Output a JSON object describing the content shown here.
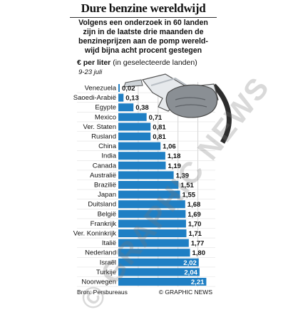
{
  "header": {
    "title": "Dure benzine wereldwijd",
    "subtitle_lines": [
      "Volgens een onderzoek in 60 landen",
      "zijn in de laatste drie maanden de",
      "benzineprijzen aan de pomp wereld-",
      "wijd bijna acht procent gestegen"
    ],
    "unit_bold": "€ per liter",
    "unit_rest": " (in geselecteerde landen)",
    "dates": "9-23 juli"
  },
  "footer": {
    "source": "Bron: Persbureaus",
    "credit": "© GRAPHIC NEWS"
  },
  "watermark": "© GRAPHIC NEWS",
  "colors": {
    "bar": "#1f7fc4",
    "bar_highlight": "#2b8fd6",
    "grid": "#c9c9c9"
  },
  "chart_data": {
    "type": "bar",
    "orientation": "horizontal",
    "categories": [
      "Venezuela",
      "Saoedi-Arabië",
      "Egypte",
      "Mexico",
      "Ver. Staten",
      "Rusland",
      "China",
      "India",
      "Canada",
      "Australië",
      "Brazilië",
      "Japan",
      "Duitsland",
      "België",
      "Frankrijk",
      "Ver. Koninkrijk",
      "Italië",
      "Nederland",
      "Israël",
      "Turkije",
      "Noorwegen"
    ],
    "values": [
      0.02,
      0.13,
      0.38,
      0.71,
      0.81,
      0.81,
      1.06,
      1.18,
      1.19,
      1.39,
      1.51,
      1.55,
      1.68,
      1.69,
      1.7,
      1.71,
      1.77,
      1.8,
      2.02,
      2.04,
      2.21
    ],
    "value_labels": [
      "0,02",
      "0,13",
      "0,38",
      "0,71",
      "0,81",
      "0,81",
      "1,06",
      "1,18",
      "1,19",
      "1,39",
      "1,51",
      "1,55",
      "1,68",
      "1,69",
      "1,70",
      "1,71",
      "1,77",
      "1,80",
      "2,02",
      "2,04",
      "2,21"
    ],
    "xlim": [
      0,
      2.4
    ],
    "grid": true,
    "label_inside_from_index": 18
  }
}
